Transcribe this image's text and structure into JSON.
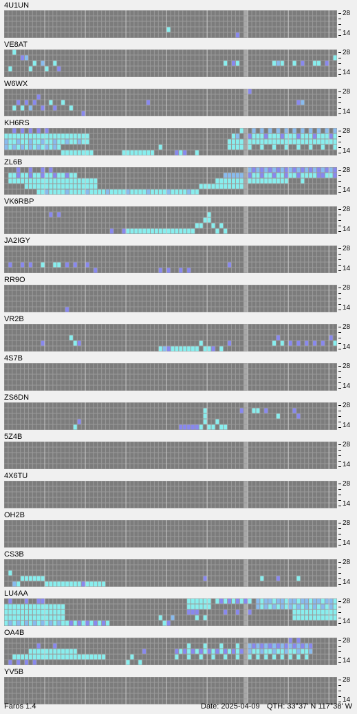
{
  "tick_labels": {
    "top": "28",
    "bottom": "14"
  },
  "colors": {
    "background": "#f0f0f0",
    "grid_empty": "#7c7c7c",
    "grid_line": "#9a9a9a",
    "column_highlight": "#a8a8a8",
    "weak": "#8888ee",
    "strong": "#88eeee",
    "medium": "#88bbee"
  },
  "beacons": [
    {
      "callsign": "4U1UN",
      "heard": [
        [
          40,
          3,
          "s"
        ],
        [
          57,
          4,
          "w"
        ]
      ]
    },
    {
      "callsign": "VE8AT",
      "heard": [
        [
          2,
          0,
          "s"
        ],
        [
          4,
          1,
          "w"
        ],
        [
          5,
          1,
          "m"
        ],
        [
          7,
          2,
          "s"
        ],
        [
          9,
          2,
          "m"
        ],
        [
          10,
          3,
          "s"
        ],
        [
          12,
          2,
          "s"
        ],
        [
          13,
          3,
          "w"
        ],
        [
          1,
          3,
          "s"
        ],
        [
          6,
          3,
          "s"
        ],
        [
          54,
          2,
          "s"
        ],
        [
          56,
          2,
          "w"
        ],
        [
          57,
          2,
          "s"
        ],
        [
          66,
          2,
          "s"
        ],
        [
          67,
          2,
          "m"
        ],
        [
          68,
          2,
          "s"
        ],
        [
          71,
          2,
          "s"
        ],
        [
          73,
          2,
          "w"
        ],
        [
          76,
          2,
          "s"
        ],
        [
          77,
          2,
          "s"
        ],
        [
          79,
          2,
          "w"
        ],
        [
          81,
          1,
          "s"
        ]
      ]
    },
    {
      "callsign": "W6WX",
      "heard": [
        [
          2,
          3,
          "s"
        ],
        [
          3,
          2,
          "w"
        ],
        [
          4,
          3,
          "s"
        ],
        [
          5,
          2,
          "w"
        ],
        [
          6,
          3,
          "m"
        ],
        [
          7,
          2,
          "w"
        ],
        [
          8,
          1,
          "w"
        ],
        [
          9,
          3,
          "w"
        ],
        [
          11,
          2,
          "s"
        ],
        [
          12,
          3,
          "w"
        ],
        [
          14,
          2,
          "s"
        ],
        [
          16,
          3,
          "s"
        ],
        [
          19,
          4,
          "w"
        ],
        [
          35,
          2,
          "w"
        ],
        [
          60,
          0,
          "w"
        ],
        [
          72,
          2,
          "w"
        ],
        [
          73,
          2,
          "m"
        ]
      ]
    },
    {
      "callsign": "KH6RS",
      "heard": "dense_kh6"
    },
    {
      "callsign": "ZL6B",
      "heard": "dense_zl6"
    },
    {
      "callsign": "VK6RBP",
      "heard": [
        [
          11,
          1,
          "w"
        ],
        [
          13,
          1,
          "w"
        ],
        [
          26,
          4,
          "w"
        ],
        [
          29,
          4,
          "w"
        ],
        [
          30,
          4,
          "s"
        ],
        [
          31,
          4,
          "s"
        ],
        [
          32,
          4,
          "s"
        ],
        [
          33,
          4,
          "s"
        ],
        [
          34,
          4,
          "s"
        ],
        [
          35,
          4,
          "s"
        ],
        [
          36,
          4,
          "s"
        ],
        [
          37,
          4,
          "s"
        ],
        [
          38,
          4,
          "s"
        ],
        [
          39,
          4,
          "s"
        ],
        [
          40,
          4,
          "s"
        ],
        [
          41,
          4,
          "s"
        ],
        [
          42,
          4,
          "s"
        ],
        [
          43,
          4,
          "s"
        ],
        [
          44,
          4,
          "s"
        ],
        [
          45,
          4,
          "s"
        ],
        [
          46,
          4,
          "s"
        ],
        [
          47,
          3,
          "s"
        ],
        [
          48,
          3,
          "s"
        ],
        [
          49,
          2,
          "s"
        ],
        [
          50,
          1,
          "s"
        ],
        [
          50,
          2,
          "s"
        ],
        [
          51,
          3,
          "s"
        ],
        [
          52,
          4,
          "s"
        ],
        [
          53,
          3,
          "s"
        ],
        [
          54,
          4,
          "s"
        ]
      ]
    },
    {
      "callsign": "JA2IGY",
      "heard": [
        [
          1,
          3,
          "w"
        ],
        [
          4,
          3,
          "w"
        ],
        [
          6,
          3,
          "w"
        ],
        [
          9,
          3,
          "s"
        ],
        [
          12,
          3,
          "s"
        ],
        [
          13,
          3,
          "s"
        ],
        [
          15,
          3,
          "w"
        ],
        [
          17,
          3,
          "w"
        ],
        [
          20,
          3,
          "w"
        ],
        [
          22,
          4,
          "w"
        ],
        [
          38,
          4,
          "w"
        ],
        [
          40,
          4,
          "w"
        ],
        [
          43,
          4,
          "w"
        ],
        [
          45,
          4,
          "w"
        ],
        [
          55,
          3,
          "w"
        ]
      ]
    },
    {
      "callsign": "RR9O",
      "heard": [
        [
          15,
          4,
          "w"
        ]
      ]
    },
    {
      "callsign": "VR2B",
      "heard": [
        [
          9,
          3,
          "w"
        ],
        [
          16,
          2,
          "s"
        ],
        [
          17,
          3,
          "s"
        ],
        [
          18,
          3,
          "w"
        ],
        [
          38,
          4,
          "s"
        ],
        [
          39,
          4,
          "m"
        ],
        [
          40,
          4,
          "w"
        ],
        [
          41,
          4,
          "s"
        ],
        [
          42,
          4,
          "s"
        ],
        [
          43,
          4,
          "s"
        ],
        [
          44,
          4,
          "s"
        ],
        [
          45,
          4,
          "s"
        ],
        [
          46,
          4,
          "s"
        ],
        [
          47,
          4,
          "s"
        ],
        [
          48,
          3,
          "s"
        ],
        [
          49,
          4,
          "s"
        ],
        [
          50,
          4,
          "s"
        ],
        [
          51,
          4,
          "w"
        ],
        [
          53,
          4,
          "s"
        ],
        [
          55,
          3,
          "w"
        ],
        [
          66,
          3,
          "s"
        ],
        [
          67,
          2,
          "w"
        ],
        [
          68,
          3,
          "s"
        ],
        [
          70,
          3,
          "w"
        ],
        [
          72,
          3,
          "w"
        ],
        [
          74,
          3,
          "w"
        ],
        [
          76,
          3,
          "w"
        ],
        [
          78,
          3,
          "w"
        ],
        [
          80,
          2,
          "w"
        ],
        [
          81,
          3,
          "s"
        ]
      ]
    },
    {
      "callsign": "4S7B",
      "heard": []
    },
    {
      "callsign": "ZS6DN",
      "heard": [
        [
          17,
          4,
          "s"
        ],
        [
          18,
          3,
          "w"
        ],
        [
          43,
          4,
          "w"
        ],
        [
          44,
          4,
          "w"
        ],
        [
          45,
          4,
          "w"
        ],
        [
          46,
          4,
          "w"
        ],
        [
          47,
          4,
          "w"
        ],
        [
          48,
          4,
          "s"
        ],
        [
          49,
          1,
          "s"
        ],
        [
          49,
          2,
          "s"
        ],
        [
          49,
          3,
          "s"
        ],
        [
          50,
          4,
          "s"
        ],
        [
          51,
          4,
          "s"
        ],
        [
          52,
          3,
          "s"
        ],
        [
          53,
          4,
          "s"
        ],
        [
          54,
          4,
          "s"
        ],
        [
          58,
          1,
          "w"
        ],
        [
          61,
          1,
          "s"
        ],
        [
          62,
          1,
          "s"
        ],
        [
          64,
          1,
          "w"
        ],
        [
          67,
          2,
          "s"
        ],
        [
          71,
          1,
          "w"
        ],
        [
          72,
          2,
          "w"
        ]
      ]
    },
    {
      "callsign": "5Z4B",
      "heard": []
    },
    {
      "callsign": "4X6TU",
      "heard": []
    },
    {
      "callsign": "OH2B",
      "heard": []
    },
    {
      "callsign": "CS3B",
      "heard": [
        [
          1,
          2,
          "s"
        ],
        [
          2,
          4,
          "m"
        ],
        [
          3,
          4,
          "s"
        ],
        [
          4,
          3,
          "s"
        ],
        [
          5,
          3,
          "s"
        ],
        [
          6,
          3,
          "s"
        ],
        [
          7,
          3,
          "s"
        ],
        [
          8,
          3,
          "s"
        ],
        [
          9,
          3,
          "s"
        ],
        [
          10,
          4,
          "s"
        ],
        [
          11,
          4,
          "s"
        ],
        [
          12,
          4,
          "s"
        ],
        [
          13,
          4,
          "s"
        ],
        [
          14,
          4,
          "s"
        ],
        [
          15,
          4,
          "s"
        ],
        [
          16,
          4,
          "s"
        ],
        [
          17,
          4,
          "s"
        ],
        [
          18,
          4,
          "s"
        ],
        [
          19,
          4,
          "w"
        ],
        [
          20,
          4,
          "s"
        ],
        [
          21,
          4,
          "s"
        ],
        [
          22,
          4,
          "s"
        ],
        [
          23,
          4,
          "s"
        ],
        [
          24,
          4,
          "s"
        ],
        [
          49,
          3,
          "w"
        ],
        [
          63,
          3,
          "s"
        ],
        [
          67,
          3,
          "w"
        ],
        [
          72,
          3,
          "s"
        ]
      ]
    },
    {
      "callsign": "LU4AA",
      "heard": "dense_lu4"
    },
    {
      "callsign": "OA4B",
      "heard": "dense_oa4"
    },
    {
      "callsign": "YV5B",
      "heard": []
    }
  ],
  "status": {
    "app_name": "Faros 1.4",
    "date": "Date: 2025-04-09",
    "qth": "QTH: 33°37' N  117°38' W"
  }
}
